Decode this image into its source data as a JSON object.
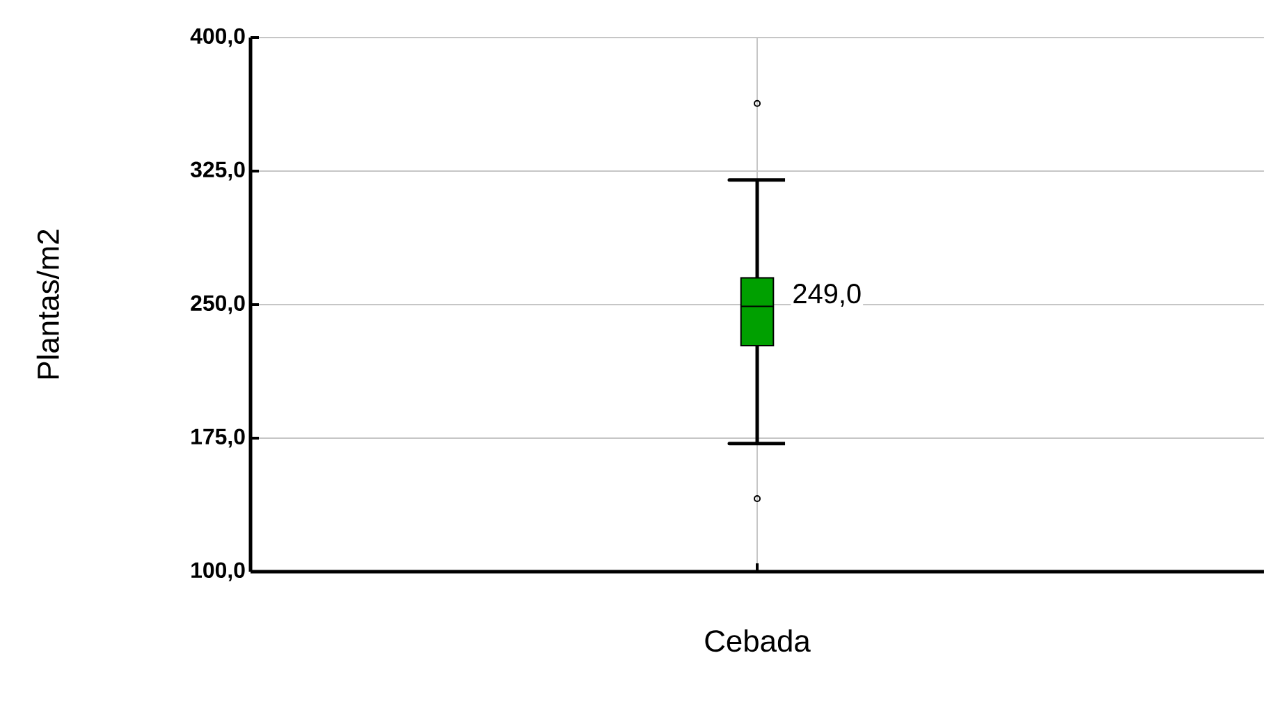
{
  "chart_data": {
    "type": "box",
    "ylabel": "Plantas/m2",
    "categories": [
      "Cebada"
    ],
    "series": [
      {
        "color": "#00a000",
        "boxes": [
          {
            "low": 172,
            "q1": 227,
            "median": 249,
            "q3": 265,
            "high": 320,
            "outliers": [
              363,
              141
            ]
          }
        ]
      }
    ],
    "ylim": [
      100,
      400
    ],
    "yticks": [
      {
        "value": 100,
        "label": "100,0"
      },
      {
        "value": 175,
        "label": "175,0"
      },
      {
        "value": 250,
        "label": "250,0"
      },
      {
        "value": 325,
        "label": "325,0"
      },
      {
        "value": 400,
        "label": "400,0"
      }
    ],
    "grid": true,
    "annotations": [
      {
        "text": "249,0",
        "x": "Cebada",
        "y": 249
      }
    ]
  }
}
